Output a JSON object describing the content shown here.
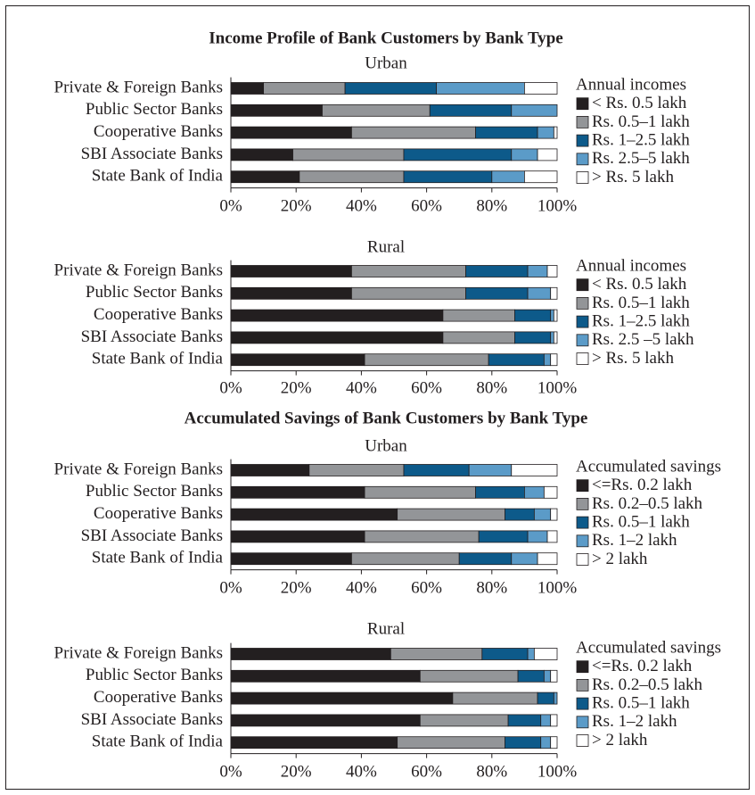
{
  "chart_data": [
    {
      "type": "stacked_bar_horizontal",
      "title": "Income Profile of Bank Customers by Bank Type",
      "subtitle": "Urban",
      "categories": [
        "Private & Foreign Banks",
        "Public Sector Banks",
        "Cooperative Banks",
        "SBI Associate Banks",
        "State Bank of India"
      ],
      "legend_title": "Annual incomes",
      "series": [
        {
          "name": "< Rs. 0.5 lakh",
          "color": "#231f20",
          "values": [
            10,
            28,
            37,
            19,
            21
          ]
        },
        {
          "name": "Rs. 0.5–1 lakh",
          "color": "#939598",
          "values": [
            25,
            33,
            38,
            34,
            32
          ]
        },
        {
          "name": "Rs. 1–2.5 lakh",
          "color": "#0d5a8a",
          "values": [
            28,
            25,
            19,
            33,
            27
          ]
        },
        {
          "name": "Rs. 2.5–5 lakh",
          "color": "#5b9bc8",
          "values": [
            27,
            14,
            5,
            8,
            10
          ]
        },
        {
          "name": "> Rs. 5 lakh",
          "color": "#ffffff",
          "values": [
            10,
            0,
            1,
            6,
            10
          ]
        }
      ],
      "xlim": [
        0,
        100
      ],
      "xticks": [
        {
          "value": 0,
          "label": "0%"
        },
        {
          "value": 20,
          "label": "20%"
        },
        {
          "value": 40,
          "label": "40%"
        },
        {
          "value": 60,
          "label": "60%"
        },
        {
          "value": 80,
          "label": "80%"
        },
        {
          "value": 100,
          "label": "100%"
        }
      ]
    },
    {
      "type": "stacked_bar_horizontal",
      "subtitle": "Rural",
      "categories": [
        "Private & Foreign Banks",
        "Public Sector Banks",
        "Cooperative Banks",
        "SBI Associate Banks",
        "State Bank of India"
      ],
      "legend_title": "Annual incomes",
      "series": [
        {
          "name": "< Rs. 0.5 lakh",
          "color": "#231f20",
          "values": [
            37,
            37,
            65,
            65,
            41
          ]
        },
        {
          "name": "Rs. 0.5–1 lakh",
          "color": "#939598",
          "values": [
            35,
            35,
            22,
            22,
            38
          ]
        },
        {
          "name": "Rs. 1–2.5 lakh",
          "color": "#0d5a8a",
          "values": [
            19,
            19,
            11,
            11,
            17
          ]
        },
        {
          "name": "Rs. 2.5 –5 lakh",
          "color": "#5b9bc8",
          "values": [
            6,
            7,
            1,
            1,
            2
          ]
        },
        {
          "name": "> Rs. 5 lakh",
          "color": "#ffffff",
          "values": [
            3,
            2,
            1,
            1,
            2
          ]
        }
      ],
      "xlim": [
        0,
        100
      ],
      "xticks": [
        {
          "value": 0,
          "label": "0%"
        },
        {
          "value": 20,
          "label": "20%"
        },
        {
          "value": 40,
          "label": "40%"
        },
        {
          "value": 60,
          "label": "60%"
        },
        {
          "value": 80,
          "label": "80%"
        },
        {
          "value": 100,
          "label": "100%"
        }
      ]
    },
    {
      "type": "stacked_bar_horizontal",
      "title": "Accumulated Savings of Bank Customers by Bank Type",
      "subtitle": "Urban",
      "categories": [
        "Private & Foreign Banks",
        "Public Sector Banks",
        "Cooperative Banks",
        "SBI Associate Banks",
        "State Bank of India"
      ],
      "legend_title": "Accumulated savings",
      "series": [
        {
          "name": "<=Rs. 0.2 lakh",
          "color": "#231f20",
          "values": [
            24,
            41,
            51,
            41,
            37
          ]
        },
        {
          "name": "Rs. 0.2–0.5 lakh",
          "color": "#939598",
          "values": [
            29,
            34,
            33,
            35,
            33
          ]
        },
        {
          "name": "Rs. 0.5–1 lakh",
          "color": "#0d5a8a",
          "values": [
            20,
            15,
            9,
            15,
            16
          ]
        },
        {
          "name": "Rs. 1–2 lakh",
          "color": "#5b9bc8",
          "values": [
            13,
            6,
            5,
            6,
            8
          ]
        },
        {
          "name": "> 2 lakh",
          "color": "#ffffff",
          "values": [
            14,
            4,
            2,
            3,
            6
          ]
        }
      ],
      "xlim": [
        0,
        100
      ],
      "xticks": [
        {
          "value": 0,
          "label": "0%"
        },
        {
          "value": 20,
          "label": "20%"
        },
        {
          "value": 40,
          "label": "40%"
        },
        {
          "value": 60,
          "label": "60%"
        },
        {
          "value": 80,
          "label": "80%"
        },
        {
          "value": 100,
          "label": "100%"
        }
      ]
    },
    {
      "type": "stacked_bar_horizontal",
      "subtitle": "Rural",
      "categories": [
        "Private & Foreign Banks",
        "Public Sector Banks",
        "Cooperative Banks",
        "SBI Associate Banks",
        "State Bank of India"
      ],
      "legend_title": "Accumulated savings",
      "series": [
        {
          "name": "<=Rs. 0.2 lakh",
          "color": "#231f20",
          "values": [
            49,
            58,
            68,
            58,
            51
          ]
        },
        {
          "name": "Rs. 0.2–0.5 lakh",
          "color": "#939598",
          "values": [
            28,
            30,
            26,
            27,
            33
          ]
        },
        {
          "name": "Rs. 0.5–1 lakh",
          "color": "#0d5a8a",
          "values": [
            14,
            8,
            5,
            10,
            11
          ]
        },
        {
          "name": "Rs. 1–2 lakh",
          "color": "#5b9bc8",
          "values": [
            2,
            2,
            1,
            3,
            3
          ]
        },
        {
          "name": "> 2 lakh",
          "color": "#ffffff",
          "values": [
            7,
            2,
            0,
            2,
            2
          ]
        }
      ],
      "xlim": [
        0,
        100
      ],
      "xticks": [
        {
          "value": 0,
          "label": "0%"
        },
        {
          "value": 20,
          "label": "20%"
        },
        {
          "value": 40,
          "label": "40%"
        },
        {
          "value": 60,
          "label": "60%"
        },
        {
          "value": 80,
          "label": "80%"
        },
        {
          "value": 100,
          "label": "100%"
        }
      ]
    }
  ]
}
